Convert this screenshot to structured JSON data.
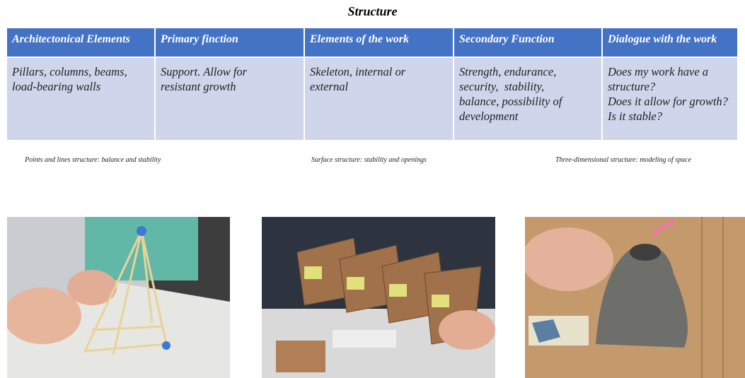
{
  "title": "Structure",
  "table": {
    "headers": [
      "Architectonical Elements",
      "Primary finction",
      "Elements of the work",
      "Secondary Function",
      "Dialogue with the work"
    ],
    "rows": [
      [
        [
          "Pillars, columns, beams,",
          "load-bearing walls"
        ],
        [
          "Support. Allow for",
          "resistant growth"
        ],
        [
          "Skeleton, internal or",
          "external"
        ],
        [
          "Strength, endurance,",
          "security,  stability,",
          "balance, possibility of",
          "development"
        ],
        [
          "Does my work have a",
          "structure?",
          "Does it allow for growth?",
          "Is it stable?"
        ]
      ]
    ]
  },
  "captions": [
    "Points and lines structure:  balance and stability",
    "Surface structure: stability  and openings",
    "Three-dimensional structure: modeling of space"
  ]
}
